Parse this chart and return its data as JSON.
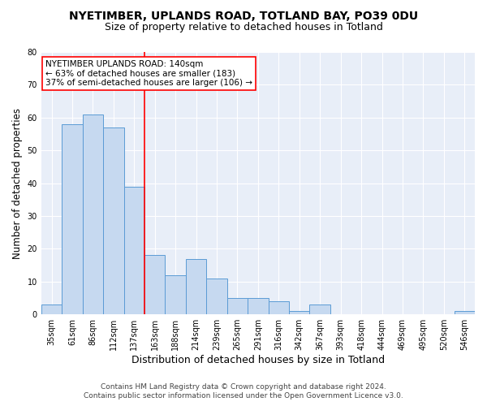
{
  "title1": "NYETIMBER, UPLANDS ROAD, TOTLAND BAY, PO39 0DU",
  "title2": "Size of property relative to detached houses in Totland",
  "xlabel": "Distribution of detached houses by size in Totland",
  "ylabel": "Number of detached properties",
  "categories": [
    "35sqm",
    "61sqm",
    "86sqm",
    "112sqm",
    "137sqm",
    "163sqm",
    "188sqm",
    "214sqm",
    "239sqm",
    "265sqm",
    "291sqm",
    "316sqm",
    "342sqm",
    "367sqm",
    "393sqm",
    "418sqm",
    "444sqm",
    "469sqm",
    "495sqm",
    "520sqm",
    "546sqm"
  ],
  "values": [
    3,
    58,
    61,
    57,
    39,
    18,
    12,
    17,
    11,
    5,
    5,
    4,
    1,
    3,
    0,
    0,
    0,
    0,
    0,
    0,
    1
  ],
  "bar_color": "#c6d9f0",
  "bar_edge_color": "#5b9bd5",
  "bar_width": 1.0,
  "vline_x": 4.5,
  "vline_color": "red",
  "annotation_line1": "NYETIMBER UPLANDS ROAD: 140sqm",
  "annotation_line2": "← 63% of detached houses are smaller (183)",
  "annotation_line3": "37% of semi-detached houses are larger (106) →",
  "annotation_box_color": "white",
  "annotation_box_edge": "red",
  "ylim": [
    0,
    80
  ],
  "yticks": [
    0,
    10,
    20,
    30,
    40,
    50,
    60,
    70,
    80
  ],
  "background_color": "#e8eef8",
  "grid_color": "white",
  "footer1": "Contains HM Land Registry data © Crown copyright and database right 2024.",
  "footer2": "Contains public sector information licensed under the Open Government Licence v3.0.",
  "title1_fontsize": 10,
  "title2_fontsize": 9,
  "xlabel_fontsize": 9,
  "ylabel_fontsize": 8.5,
  "tick_fontsize": 7,
  "annotation_fontsize": 7.5,
  "footer_fontsize": 6.5
}
